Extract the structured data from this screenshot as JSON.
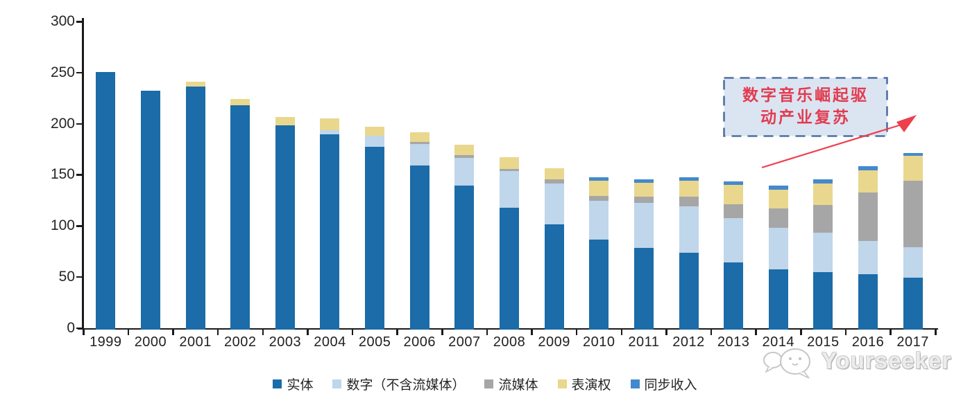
{
  "chart_data": {
    "type": "bar",
    "subtype": "stacked",
    "title": "",
    "xlabel": "",
    "ylabel": "",
    "ylim": [
      0,
      300
    ],
    "yticks": [
      0,
      50,
      100,
      150,
      200,
      250,
      300
    ],
    "grid": false,
    "legend_position": "bottom",
    "categories": [
      "1999",
      "2000",
      "2001",
      "2002",
      "2003",
      "2004",
      "2005",
      "2006",
      "2007",
      "2008",
      "2009",
      "2010",
      "2011",
      "2012",
      "2013",
      "2014",
      "2015",
      "2016",
      "2017"
    ],
    "series": [
      {
        "name": "实体",
        "color": "#1b6ca8",
        "values": [
          252,
          234,
          238,
          220,
          200,
          191,
          179,
          161,
          141,
          119,
          103,
          88,
          80,
          75,
          66,
          59,
          56,
          54,
          51
        ]
      },
      {
        "name": "数字（不含流媒体）",
        "color": "#bfd6eb",
        "values": [
          0,
          0,
          0,
          0,
          0,
          4,
          11,
          21,
          27,
          36,
          40,
          38,
          44,
          46,
          43,
          41,
          39,
          33,
          30
        ]
      },
      {
        "name": "流媒体",
        "color": "#a6a6a6",
        "values": [
          0,
          0,
          0,
          0,
          0,
          0,
          0,
          2,
          3,
          2,
          4,
          5,
          6,
          9,
          14,
          19,
          27,
          47,
          65
        ]
      },
      {
        "name": "表演权",
        "color": "#e9d78e",
        "values": [
          0,
          0,
          5,
          6,
          8,
          12,
          9,
          9,
          10,
          12,
          11,
          15,
          14,
          16,
          19,
          18,
          21,
          22,
          24
        ]
      },
      {
        "name": "同步收入",
        "color": "#4489cc",
        "values": [
          0,
          0,
          0,
          0,
          0,
          0,
          0,
          0,
          0,
          0,
          0,
          3,
          3,
          3,
          3,
          4,
          4,
          4,
          3
        ]
      }
    ]
  },
  "annotation": {
    "line1": "数字音乐崛起驱",
    "line2": "动产业复苏",
    "box_fill": "#dbe5f2",
    "box_border": "#4f6fa1",
    "text_color": "#e23c50",
    "arrow_color": "#ee3f4d"
  },
  "watermark": {
    "text": "Yourseeker"
  }
}
